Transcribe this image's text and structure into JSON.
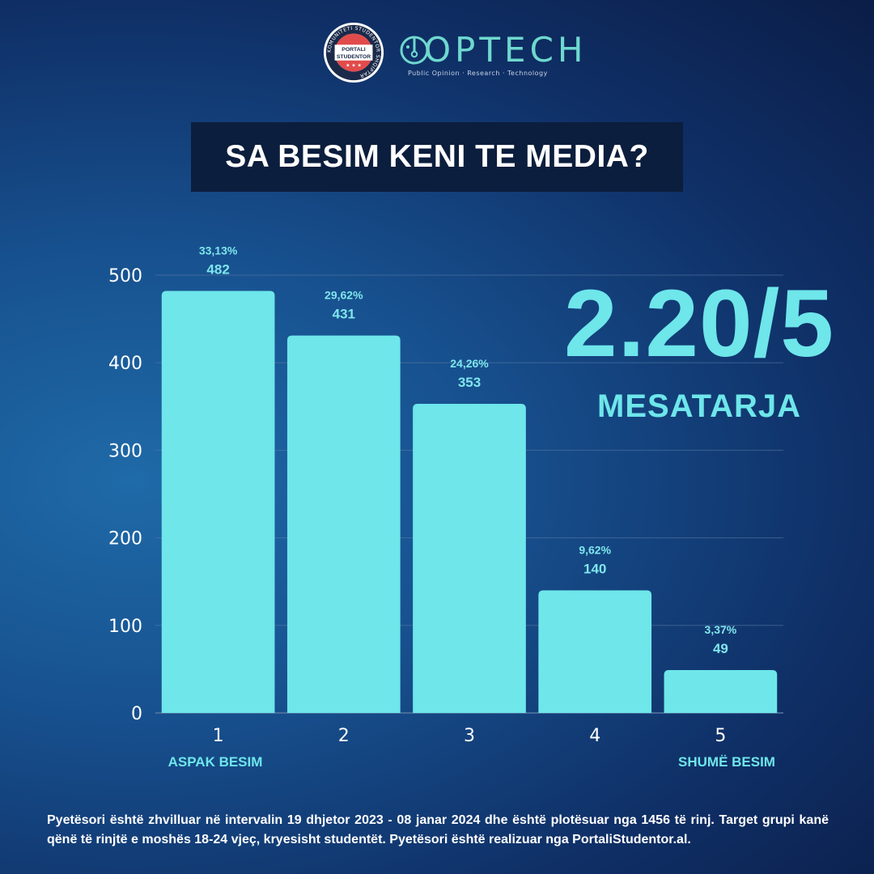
{
  "header": {
    "seal": {
      "ring_text": "KOMUNITETI STUDENTOR SHQIPTAR",
      "line1": "PORTALI",
      "line2": "STUDENTOR"
    },
    "optech": {
      "name": "OPTECH",
      "tagline": "Public Opinion · Research · Technology"
    }
  },
  "title": "SA BESIM KENI TE MEDIA?",
  "average": {
    "value": "2.20/5",
    "label": "MESATARJA"
  },
  "chart_data": {
    "type": "bar",
    "title": "SA BESIM KENI TE MEDIA?",
    "categories": [
      "1",
      "2",
      "3",
      "4",
      "5"
    ],
    "values": [
      482,
      431,
      353,
      140,
      49
    ],
    "percent_labels": [
      "33,13%",
      "29,62%",
      "24,26%",
      "9,62%",
      "3,37%"
    ],
    "count_labels": [
      "482",
      "431",
      "353",
      "140",
      "49"
    ],
    "yticks": [
      "0",
      "100",
      "200",
      "300",
      "400",
      "500"
    ],
    "ylim": [
      0,
      500
    ],
    "grid": true,
    "category_end_labels": {
      "first": "ASPAK BESIM",
      "last": "SHUMË BESIM"
    },
    "colors": {
      "bar": "#6ee6ea",
      "grid": "#5f7fa8"
    }
  },
  "footnote": "Pyetësori është zhvilluar në intervalin 19 dhjetor 2023 - 08 janar 2024 dhe është plotësuar nga 1456 të rinj. Target grupi kanë qënë të rinjtë e moshës 18-24 vjeç, kryesisht studentët. Pyetësori është realizuar nga PortaliStudentor.al."
}
